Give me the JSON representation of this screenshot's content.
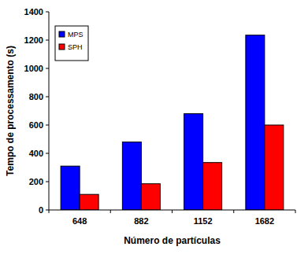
{
  "chart_data": {
    "type": "bar",
    "categories": [
      "648",
      "882",
      "1152",
      "1682"
    ],
    "series": [
      {
        "name": "MPS",
        "color": "#0000ff",
        "values": [
          310,
          480,
          680,
          1235
        ]
      },
      {
        "name": "SPH",
        "color": "#ff0000",
        "values": [
          110,
          185,
          335,
          600
        ]
      }
    ],
    "x_label": "Número de partículas",
    "y_label": "Tempo de processamento (s)",
    "ylim": [
      0,
      1400
    ],
    "yticks": [
      0,
      200,
      400,
      600,
      800,
      1000,
      1200,
      1400
    ],
    "grid": false,
    "legend": "upper left"
  }
}
